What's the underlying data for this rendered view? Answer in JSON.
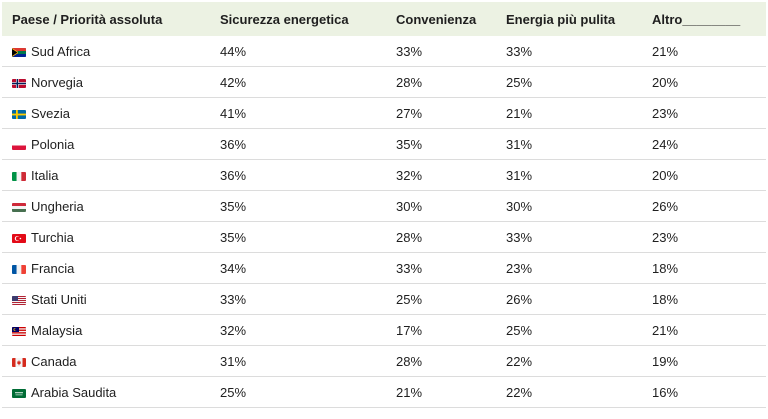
{
  "table": {
    "headers": [
      "Paese / Priorità assoluta",
      "Sicurezza energetica",
      "Convenienza",
      "Energia più pulita",
      "Altro________"
    ],
    "rows": [
      {
        "flag": "south-africa-flag-icon",
        "country": "Sud Africa",
        "values": [
          "44%",
          "33%",
          "33%",
          "21%"
        ]
      },
      {
        "flag": "norway-flag-icon",
        "country": "Norvegia",
        "values": [
          "42%",
          "28%",
          "25%",
          "20%"
        ]
      },
      {
        "flag": "sweden-flag-icon",
        "country": "Svezia",
        "values": [
          "41%",
          "27%",
          "21%",
          "23%"
        ]
      },
      {
        "flag": "poland-flag-icon",
        "country": "Polonia",
        "values": [
          "36%",
          "35%",
          "31%",
          "24%"
        ]
      },
      {
        "flag": "italy-flag-icon",
        "country": "Italia",
        "values": [
          "36%",
          "32%",
          "31%",
          "20%"
        ]
      },
      {
        "flag": "hungary-flag-icon",
        "country": "Ungheria",
        "values": [
          "35%",
          "30%",
          "30%",
          "26%"
        ]
      },
      {
        "flag": "turkey-flag-icon",
        "country": "Turchia",
        "values": [
          "35%",
          "28%",
          "33%",
          "23%"
        ]
      },
      {
        "flag": "france-flag-icon",
        "country": "Francia",
        "values": [
          "34%",
          "33%",
          "23%",
          "18%"
        ]
      },
      {
        "flag": "usa-flag-icon",
        "country": "Stati Uniti",
        "values": [
          "33%",
          "25%",
          "26%",
          "18%"
        ]
      },
      {
        "flag": "malaysia-flag-icon",
        "country": "Malaysia",
        "values": [
          "32%",
          "17%",
          "25%",
          "21%"
        ]
      },
      {
        "flag": "canada-flag-icon",
        "country": "Canada",
        "values": [
          "31%",
          "28%",
          "22%",
          "19%"
        ]
      },
      {
        "flag": "saudi-arabia-flag-icon",
        "country": "Arabia Saudita",
        "values": [
          "25%",
          "21%",
          "22%",
          "16%"
        ]
      }
    ]
  },
  "colors": {
    "header_bg": "#ecf2e3",
    "row_border": "#dcdcdc",
    "text": "#1f1f1f"
  }
}
